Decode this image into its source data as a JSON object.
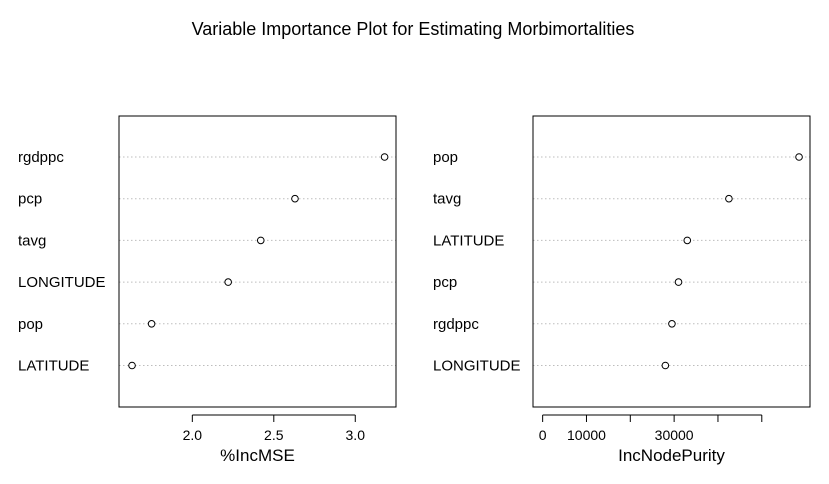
{
  "title": "Variable Importance Plot for Estimating Morbimortalities",
  "chart_data": [
    {
      "type": "scatter",
      "name": "dotchart-incmse",
      "xlabel": "%IncMSE",
      "xlim": [
        1.55,
        3.25
      ],
      "ticks": [
        {
          "value": 2.0,
          "label": "2.0"
        },
        {
          "value": 2.5,
          "label": "2.5"
        },
        {
          "value": 3.0,
          "label": "3.0"
        }
      ],
      "categories": [
        "rgdppc",
        "pcp",
        "tavg",
        "LONGITUDE",
        "pop",
        "LATITUDE"
      ],
      "values": [
        3.18,
        2.63,
        2.42,
        2.22,
        1.75,
        1.63
      ],
      "grid": "dotted horizontal"
    },
    {
      "type": "scatter",
      "name": "dotchart-incnodepurity",
      "xlabel": "IncNodePurity",
      "xlim": [
        -2200,
        61000
      ],
      "ticks": [
        {
          "value": 0,
          "label": "0"
        },
        {
          "value": 10000,
          "label": "10000"
        },
        {
          "value": 20000,
          "label": ""
        },
        {
          "value": 30000,
          "label": "30000"
        },
        {
          "value": 40000,
          "label": ""
        },
        {
          "value": 50000,
          "label": ""
        }
      ],
      "categories": [
        "pop",
        "tavg",
        "LATITUDE",
        "pcp",
        "rgdppc",
        "LONGITUDE"
      ],
      "values": [
        58500,
        42500,
        33000,
        31000,
        29500,
        28000
      ],
      "grid": "dotted horizontal"
    }
  ]
}
